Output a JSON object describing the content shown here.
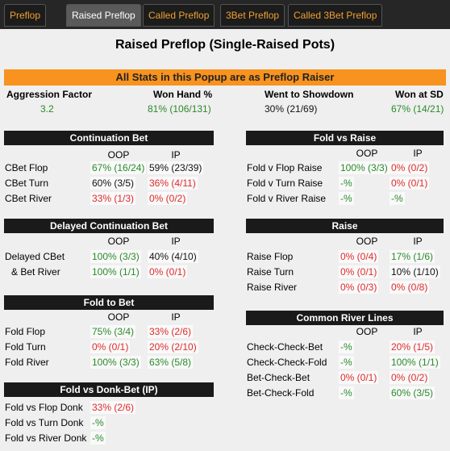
{
  "tabs": [
    {
      "label": "Preflop",
      "selected": false
    },
    {
      "label": "Raised Preflop",
      "selected": true
    },
    {
      "label": "Called Preflop",
      "selected": false
    },
    {
      "label": "3Bet Preflop",
      "selected": false
    },
    {
      "label": "Called 3Bet Preflop",
      "selected": false
    }
  ],
  "title": "Raised Preflop (Single-Raised Pots)",
  "banner": "All Stats in this Popup are as Preflop Raiser",
  "summary": [
    {
      "label": "Aggression Factor",
      "value": "3.2",
      "color": "green"
    },
    {
      "label": "Won Hand %",
      "value": "81% (106/131)",
      "color": "green"
    },
    {
      "label": "Went to Showdown",
      "value": "30% (21/69)",
      "color": "black"
    },
    {
      "label": "Won at SD",
      "value": "67% (14/21)",
      "color": "green"
    }
  ],
  "sections": [
    {
      "title": "Continuation Bet",
      "columns": [
        "OOP",
        "IP"
      ],
      "rows": [
        {
          "label": "CBet Flop",
          "cells": [
            {
              "text": "67% (16/24)",
              "color": "green"
            },
            {
              "text": "59% (23/39)",
              "color": "black"
            }
          ]
        },
        {
          "label": "CBet Turn",
          "cells": [
            {
              "text": "60% (3/5)",
              "color": "black"
            },
            {
              "text": "36% (4/11)",
              "color": "red"
            }
          ]
        },
        {
          "label": "CBet River",
          "cells": [
            {
              "text": "33% (1/3)",
              "color": "red"
            },
            {
              "text": "0% (0/2)",
              "color": "red"
            }
          ]
        }
      ]
    },
    {
      "title": "Delayed Continuation Bet",
      "columns": [
        "OOP",
        "IP"
      ],
      "rows": [
        {
          "label": "Delayed CBet",
          "cells": [
            {
              "text": "100% (3/3)",
              "color": "green"
            },
            {
              "text": "40% (4/10)",
              "color": "black"
            }
          ]
        },
        {
          "label": "& Bet River",
          "cells": [
            {
              "text": "100% (1/1)",
              "color": "green"
            },
            {
              "text": "0% (0/1)",
              "color": "red"
            }
          ]
        }
      ]
    },
    {
      "title": "Fold to Bet",
      "columns": [
        "OOP",
        "IP"
      ],
      "rows": [
        {
          "label": "Fold Flop",
          "cells": [
            {
              "text": "75% (3/4)",
              "color": "green"
            },
            {
              "text": "33% (2/6)",
              "color": "red"
            }
          ]
        },
        {
          "label": "Fold Turn",
          "cells": [
            {
              "text": "0% (0/1)",
              "color": "red"
            },
            {
              "text": "20% (2/10)",
              "color": "red"
            }
          ]
        },
        {
          "label": "Fold River",
          "cells": [
            {
              "text": "100% (3/3)",
              "color": "green"
            },
            {
              "text": "63% (5/8)",
              "color": "green"
            }
          ]
        }
      ]
    },
    {
      "title": "Fold vs Donk-Bet (IP)",
      "columns": [],
      "rows": [
        {
          "label": "Fold vs Flop Donk",
          "cells": [
            {
              "text": "33% (2/6)",
              "color": "red"
            }
          ]
        },
        {
          "label": "Fold vs Turn Donk",
          "cells": [
            {
              "text": "-%",
              "color": "green"
            }
          ]
        },
        {
          "label": "Fold vs River Donk",
          "cells": [
            {
              "text": "-%",
              "color": "green"
            }
          ]
        }
      ]
    },
    {
      "title": "Fold vs Raise",
      "columns": [
        "OOP",
        "IP"
      ],
      "rows": [
        {
          "label": "Fold v Flop Raise",
          "cells": [
            {
              "text": "100% (3/3)",
              "color": "green"
            },
            {
              "text": "0% (0/2)",
              "color": "red"
            }
          ]
        },
        {
          "label": "Fold v Turn Raise",
          "cells": [
            {
              "text": "-%",
              "color": "green"
            },
            {
              "text": "0% (0/1)",
              "color": "red"
            }
          ]
        },
        {
          "label": "Fold v River Raise",
          "cells": [
            {
              "text": "-%",
              "color": "green"
            },
            {
              "text": "-%",
              "color": "green"
            }
          ]
        }
      ]
    },
    {
      "title": "Raise",
      "columns": [
        "OOP",
        "IP"
      ],
      "rows": [
        {
          "label": "Raise Flop",
          "cells": [
            {
              "text": "0% (0/4)",
              "color": "red"
            },
            {
              "text": "17% (1/6)",
              "color": "green"
            }
          ]
        },
        {
          "label": "Raise Turn",
          "cells": [
            {
              "text": "0% (0/1)",
              "color": "red"
            },
            {
              "text": "10% (1/10)",
              "color": "black"
            }
          ]
        },
        {
          "label": "Raise River",
          "cells": [
            {
              "text": "0% (0/3)",
              "color": "red"
            },
            {
              "text": "0% (0/8)",
              "color": "red"
            }
          ]
        }
      ]
    },
    {
      "title": "Common River Lines",
      "columns": [
        "OOP",
        "IP"
      ],
      "rows": [
        {
          "label": "Check-Check-Bet",
          "cells": [
            {
              "text": "-%",
              "color": "green"
            },
            {
              "text": "20% (1/5)",
              "color": "red"
            }
          ]
        },
        {
          "label": "Check-Check-Fold",
          "cells": [
            {
              "text": "-%",
              "color": "green"
            },
            {
              "text": "100% (1/1)",
              "color": "green"
            }
          ]
        },
        {
          "label": "Bet-Check-Bet",
          "cells": [
            {
              "text": "0% (0/1)",
              "color": "red"
            },
            {
              "text": "0% (0/2)",
              "color": "red"
            }
          ]
        },
        {
          "label": "Bet-Check-Fold",
          "cells": [
            {
              "text": "-%",
              "color": "green"
            },
            {
              "text": "60% (3/5)",
              "color": "green"
            }
          ]
        }
      ]
    }
  ]
}
